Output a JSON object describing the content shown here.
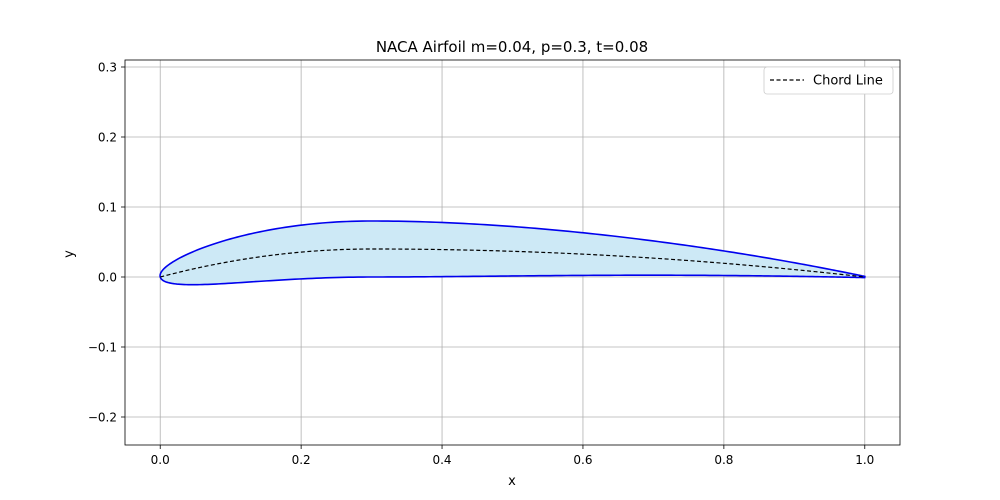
{
  "chart_data": {
    "type": "area",
    "title": "NACA Airfoil m=0.04, p=0.3, t=0.08",
    "xlabel": "x",
    "ylabel": "y",
    "xlim": [
      -0.05,
      1.05
    ],
    "ylim": [
      -0.24,
      0.31
    ],
    "xticks": [
      0.0,
      0.2,
      0.4,
      0.6,
      0.8,
      1.0
    ],
    "xtick_labels": [
      "0.0",
      "0.2",
      "0.4",
      "0.6",
      "0.8",
      "1.0"
    ],
    "yticks": [
      -0.2,
      -0.1,
      0.0,
      0.1,
      0.2,
      0.3
    ],
    "ytick_labels": [
      "−0.2",
      "−0.1",
      "0.0",
      "0.1",
      "0.2",
      "0.3"
    ],
    "grid": true,
    "legend_position": "top-right",
    "legend": [
      "Chord Line"
    ],
    "colors": {
      "outline": "#0000ee",
      "fill": "#cde9f6",
      "chord": "#000000",
      "grid": "#b0b0b0"
    },
    "airfoil": {
      "m": 0.04,
      "p": 0.3,
      "t": 0.08,
      "surface_x": [
        0.0,
        0.005,
        0.0125,
        0.025,
        0.05,
        0.075,
        0.1,
        0.15,
        0.2,
        0.25,
        0.3,
        0.35,
        0.4,
        0.45,
        0.5,
        0.55,
        0.6,
        0.65,
        0.7,
        0.75,
        0.8,
        0.85,
        0.9,
        0.95,
        1.0
      ]
    },
    "series": [
      {
        "name": "Chord Line",
        "style": "dashed"
      }
    ]
  }
}
